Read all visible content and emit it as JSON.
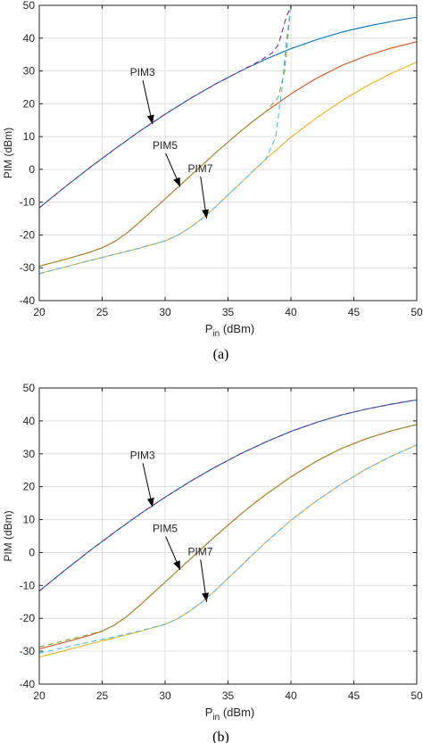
{
  "chart_data": [
    {
      "type": "line",
      "panel_caption": "(a)",
      "xlabel_main": "P",
      "xlabel_sub": "in",
      "xlabel_unit": " (dBm)",
      "ylabel": "PIM (dBm)",
      "xlim": [
        20,
        50
      ],
      "ylim": [
        -40,
        50
      ],
      "xticks": [
        "20",
        "25",
        "30",
        "35",
        "40",
        "45",
        "50"
      ],
      "yticks": [
        "-40",
        "-30",
        "-20",
        "-10",
        "0",
        "10",
        "20",
        "30",
        "40",
        "50"
      ],
      "grid": true,
      "series": [
        {
          "color": "#0072BD",
          "dash": false,
          "x": [
            20,
            22,
            24,
            26,
            28,
            30,
            32,
            34,
            36,
            38,
            40,
            42,
            44,
            46,
            48,
            50
          ],
          "y": [
            -11.7,
            -5.5,
            0.5,
            6.2,
            11.7,
            16.8,
            21.6,
            26.0,
            30.0,
            33.6,
            36.8,
            39.5,
            41.8,
            43.6,
            45.1,
            46.4
          ]
        },
        {
          "color": "#7E2F8E",
          "dash": true,
          "x": [
            20,
            22,
            24,
            26,
            28,
            30,
            32,
            34,
            36,
            37.5,
            38.5,
            39,
            39.3,
            39.6,
            40
          ],
          "y": [
            -11.7,
            -5.5,
            0.5,
            6.2,
            11.7,
            16.8,
            21.6,
            26.0,
            30.0,
            33.0,
            35.5,
            38.0,
            42.0,
            46.0,
            50.0
          ]
        },
        {
          "color": "#D95319",
          "dash": false,
          "x": [
            20,
            22,
            24,
            25,
            26,
            27,
            28,
            29,
            30,
            31,
            32,
            33,
            34,
            35,
            36,
            37,
            38,
            40,
            42,
            44,
            46,
            48,
            50
          ],
          "y": [
            -29.5,
            -27.5,
            -25.3,
            -23.9,
            -22.0,
            -19.3,
            -16.0,
            -12.5,
            -9.0,
            -5.5,
            -2.0,
            1.5,
            5.0,
            8.3,
            11.6,
            14.7,
            17.6,
            23.0,
            27.7,
            31.6,
            34.6,
            37.0,
            38.9
          ]
        },
        {
          "color": "#77AC30",
          "dash": true,
          "x": [
            20,
            22,
            24,
            25,
            26,
            27,
            28,
            29,
            30,
            31,
            32,
            33,
            34,
            35,
            36,
            37,
            38,
            39,
            39.5,
            40
          ],
          "y": [
            -29.5,
            -27.5,
            -25.3,
            -23.9,
            -22.0,
            -19.3,
            -16.0,
            -12.5,
            -9.0,
            -5.5,
            -2.0,
            1.5,
            5.0,
            8.3,
            11.6,
            14.7,
            17.6,
            22.0,
            30.0,
            50.0
          ]
        },
        {
          "color": "#EDB120",
          "dash": false,
          "x": [
            20,
            22,
            24,
            26,
            28,
            30,
            31,
            32,
            33,
            34,
            35,
            36,
            37,
            38,
            40,
            42,
            44,
            46,
            48,
            50
          ],
          "y": [
            -31.8,
            -29.8,
            -27.8,
            -25.9,
            -24.0,
            -21.8,
            -20.1,
            -17.7,
            -14.8,
            -11.5,
            -7.8,
            -4.2,
            -0.5,
            3.1,
            9.8,
            15.6,
            20.8,
            25.4,
            29.3,
            32.7
          ]
        },
        {
          "color": "#4DBEEE",
          "dash": true,
          "x": [
            20,
            22,
            24,
            26,
            28,
            30,
            31,
            32,
            33,
            34,
            35,
            36,
            37,
            38,
            38.8,
            39.3,
            39.6,
            40
          ],
          "y": [
            -31.8,
            -29.8,
            -27.8,
            -25.9,
            -24.0,
            -21.8,
            -20.1,
            -17.7,
            -14.8,
            -11.5,
            -7.8,
            -4.2,
            -0.5,
            3.1,
            10.0,
            25.0,
            38.0,
            50.0
          ]
        }
      ],
      "annotations": [
        {
          "text": "PIM3",
          "tx": 28.2,
          "ty": 28.5,
          "ax": 29.0,
          "ay": 13.8
        },
        {
          "text": "PIM5",
          "tx": 30.0,
          "ty": 6.2,
          "ax": 31.2,
          "ay": -5.3
        },
        {
          "text": "PIM7",
          "tx": 32.8,
          "ty": -0.8,
          "ax": 33.3,
          "ay": -15.0
        }
      ]
    },
    {
      "type": "line",
      "panel_caption": "(b)",
      "xlabel_main": "P",
      "xlabel_sub": "in",
      "xlabel_unit": " (dBm)",
      "ylabel": "PIM (dBm)",
      "xlim": [
        20,
        50
      ],
      "ylim": [
        -40,
        50
      ],
      "xticks": [
        "20",
        "25",
        "30",
        "35",
        "40",
        "45",
        "50"
      ],
      "yticks": [
        "-40",
        "-30",
        "-20",
        "-10",
        "0",
        "10",
        "20",
        "30",
        "40",
        "50"
      ],
      "grid": true,
      "series": [
        {
          "color": "#0072BD",
          "dash": false,
          "x": [
            20,
            22,
            24,
            26,
            28,
            30,
            32,
            34,
            36,
            38,
            40,
            42,
            44,
            46,
            48,
            50
          ],
          "y": [
            -11.7,
            -5.5,
            0.5,
            6.2,
            11.7,
            16.8,
            21.6,
            26.0,
            30.0,
            33.6,
            36.8,
            39.5,
            41.8,
            43.6,
            45.1,
            46.4
          ]
        },
        {
          "color": "#7E2F8E",
          "dash": true,
          "x": [
            20,
            22,
            24,
            26,
            28,
            30,
            32,
            34,
            36,
            38,
            40,
            42,
            44,
            46,
            48,
            50
          ],
          "y": [
            -11.7,
            -5.5,
            0.5,
            6.2,
            11.7,
            16.8,
            21.6,
            26.0,
            30.0,
            33.6,
            36.8,
            39.5,
            41.8,
            43.6,
            45.1,
            46.4
          ]
        },
        {
          "color": "#D95319",
          "dash": false,
          "x": [
            20,
            22,
            24,
            25,
            26,
            27,
            28,
            29,
            30,
            31,
            32,
            33,
            34,
            35,
            36,
            37,
            38,
            40,
            42,
            44,
            46,
            48,
            50
          ],
          "y": [
            -29.3,
            -27.3,
            -25.2,
            -23.9,
            -22.0,
            -19.3,
            -16.0,
            -12.5,
            -9.0,
            -5.5,
            -2.0,
            1.5,
            5.0,
            8.3,
            11.6,
            14.7,
            17.6,
            23.0,
            27.7,
            31.6,
            34.6,
            37.0,
            38.9
          ]
        },
        {
          "color": "#77AC30",
          "dash": true,
          "x": [
            20,
            22,
            24,
            25,
            26,
            27,
            28,
            29,
            30,
            31,
            32,
            33,
            34,
            35,
            36,
            37,
            38,
            40,
            42,
            44,
            46,
            48,
            50
          ],
          "y": [
            -28.7,
            -26.8,
            -24.9,
            -23.8,
            -22.0,
            -19.3,
            -16.0,
            -12.5,
            -9.0,
            -5.5,
            -2.0,
            1.5,
            5.0,
            8.3,
            11.6,
            14.7,
            17.6,
            23.0,
            27.7,
            31.6,
            34.6,
            37.0,
            38.9
          ]
        },
        {
          "color": "#EDB120",
          "dash": false,
          "x": [
            20,
            22,
            24,
            26,
            28,
            30,
            31,
            32,
            33,
            34,
            35,
            36,
            37,
            38,
            40,
            42,
            44,
            46,
            48,
            50
          ],
          "y": [
            -31.8,
            -29.8,
            -27.8,
            -25.9,
            -24.0,
            -21.8,
            -20.1,
            -17.7,
            -14.8,
            -11.5,
            -7.8,
            -4.2,
            -0.5,
            3.1,
            9.8,
            15.6,
            20.8,
            25.4,
            29.3,
            32.7
          ]
        },
        {
          "color": "#4DBEEE",
          "dash": true,
          "x": [
            20,
            22,
            24,
            26,
            28,
            30,
            31,
            32,
            33,
            34,
            35,
            36,
            37,
            38,
            40,
            42,
            44,
            46,
            48,
            50
          ],
          "y": [
            -30.6,
            -28.9,
            -27.2,
            -25.6,
            -23.8,
            -21.8,
            -20.1,
            -17.7,
            -14.8,
            -11.5,
            -7.8,
            -4.2,
            -0.5,
            3.1,
            9.8,
            15.6,
            20.8,
            25.4,
            29.3,
            32.7
          ]
        }
      ],
      "annotations": [
        {
          "text": "PIM3",
          "tx": 28.2,
          "ty": 28.5,
          "ax": 29.0,
          "ay": 13.8
        },
        {
          "text": "PIM5",
          "tx": 30.0,
          "ty": 6.2,
          "ax": 31.2,
          "ay": -5.3
        },
        {
          "text": "PIM7",
          "tx": 32.8,
          "ty": -0.8,
          "ax": 33.3,
          "ay": -15.0
        }
      ]
    }
  ]
}
